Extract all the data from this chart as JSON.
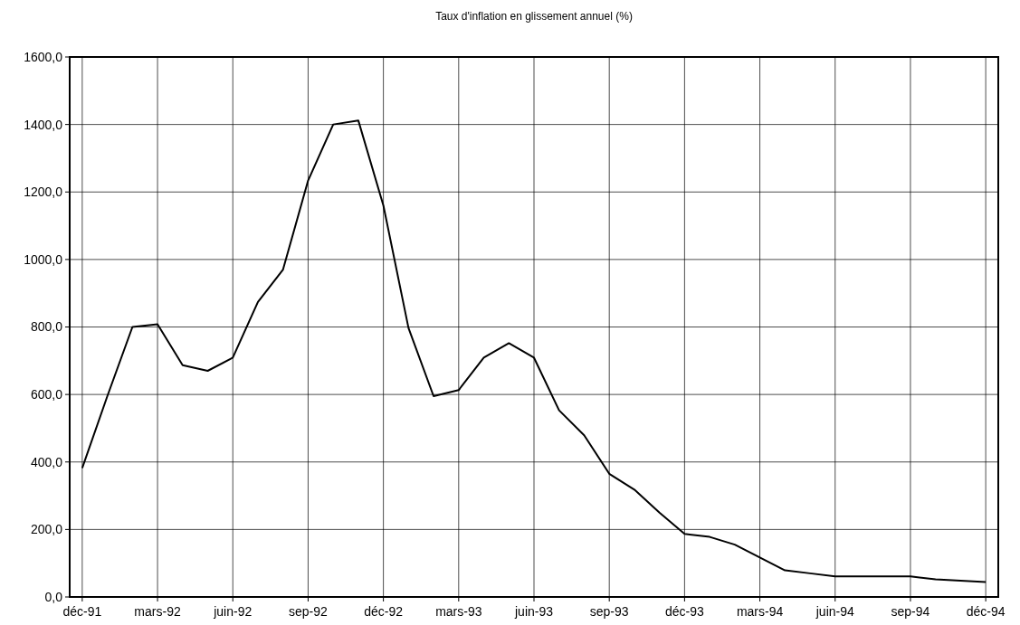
{
  "chart_data": {
    "type": "line",
    "title": "Taux d'inflation en glissement annuel (%)",
    "categories": [
      "déc-91",
      null,
      null,
      "mars-92",
      null,
      null,
      "juin-92",
      null,
      null,
      "sep-92",
      null,
      null,
      "déc-92",
      null,
      null,
      "mars-93",
      null,
      null,
      "juin-93",
      null,
      null,
      "sep-93",
      null,
      null,
      "déc-93",
      null,
      null,
      "mars-94",
      null,
      null,
      "juin-94",
      null,
      null,
      "sep-94",
      null,
      null,
      "déc-94"
    ],
    "series": [
      {
        "color": "#000000",
        "values": [
          382,
          595,
          800,
          808,
          687,
          670,
          709,
          874,
          970,
          1234,
          1400,
          1412,
          1160,
          797,
          595,
          613,
          709,
          752,
          709,
          553,
          479,
          365,
          318,
          250,
          187,
          178,
          155,
          117,
          79,
          70,
          61,
          61,
          61,
          61,
          52,
          48,
          44
        ]
      }
    ],
    "ylim": [
      0,
      1600
    ],
    "yticks": [
      {
        "value": 0,
        "label": "0,0"
      },
      {
        "value": 200,
        "label": "200,0"
      },
      {
        "value": 400,
        "label": "400,0"
      },
      {
        "value": 600,
        "label": "600,0"
      },
      {
        "value": 800,
        "label": "800,0"
      },
      {
        "value": 1000,
        "label": "1000,0"
      },
      {
        "value": 1200,
        "label": "1200,0"
      },
      {
        "value": 1400,
        "label": "1400,0"
      },
      {
        "value": 1600,
        "label": "1600,0"
      }
    ],
    "grid": true,
    "marker": "none",
    "line_style": "solid"
  }
}
